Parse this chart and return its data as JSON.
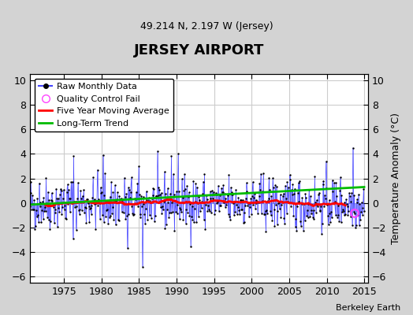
{
  "title": "JERSEY AIRPORT",
  "subtitle": "49.214 N, 2.197 W (Jersey)",
  "ylabel": "Temperature Anomaly (°C)",
  "attribution": "Berkeley Earth",
  "xlim": [
    1970.5,
    2015.5
  ],
  "ylim": [
    -6.5,
    10.5
  ],
  "yticks": [
    -6,
    -4,
    -2,
    0,
    2,
    4,
    6,
    8,
    10
  ],
  "xticks": [
    1975,
    1980,
    1985,
    1990,
    1995,
    2000,
    2005,
    2010,
    2015
  ],
  "plot_bg": "#ffffff",
  "fig_bg": "#d3d3d3",
  "raw_color": "#4444ff",
  "ma_color": "#ff0000",
  "trend_color": "#00bb00",
  "qc_color": "#ff44ff",
  "seed": 42
}
